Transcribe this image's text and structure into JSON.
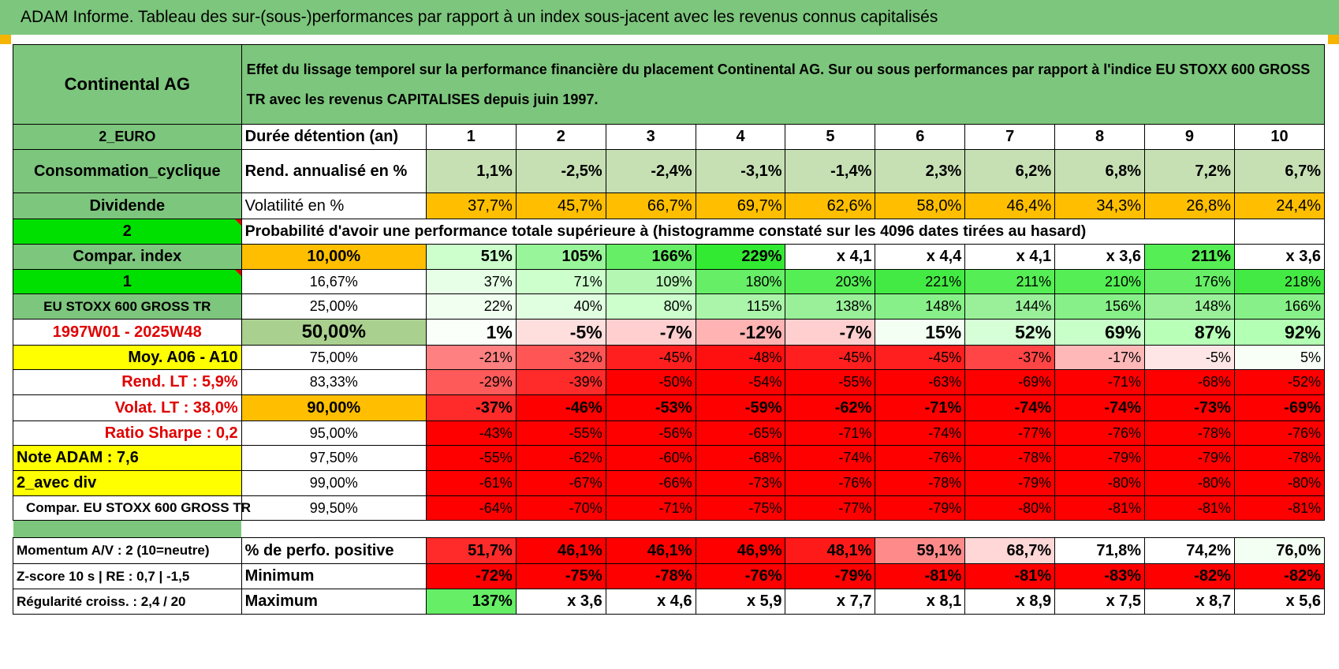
{
  "title": "ADAM Informe. Tableau des sur-(sous-)performances par rapport à un index sous-jacent avec les revenus connus capitalisés",
  "header": {
    "company": "Continental AG",
    "description": "Effet du lissage temporel sur la performance financière du placement Continental AG. Sur ou sous performances par rapport à l'indice EU STOXX 600 GROSS TR avec les revenus CAPITALISES depuis juin 1997."
  },
  "years_row": {
    "left": "2_EURO",
    "label": "Durée détention (an)",
    "years": [
      "1",
      "2",
      "3",
      "4",
      "5",
      "6",
      "7",
      "8",
      "9",
      "10"
    ]
  },
  "rend_row": {
    "left": "Consommation_cyclique",
    "label": "Rend. annualisé en %",
    "values": [
      "1,1%",
      "-2,5%",
      "-2,4%",
      "-3,1%",
      "-1,4%",
      "2,3%",
      "6,2%",
      "6,8%",
      "7,2%",
      "6,7%"
    ]
  },
  "vol_row": {
    "left": "Dividende",
    "label": "Volatilité en %",
    "values": [
      "37,7%",
      "45,7%",
      "66,7%",
      "69,7%",
      "62,6%",
      "58,0%",
      "46,4%",
      "34,3%",
      "26,8%",
      "24,4%"
    ]
  },
  "prob_row": {
    "left": "2",
    "text": "Probabilité d'avoir une performance totale supérieure à (histogramme constaté sur les 4096 dates tirées au hasard)"
  },
  "quantile_rows": [
    {
      "left": "Compar. index",
      "pct": "10,00%",
      "values": [
        "51%",
        "105%",
        "166%",
        "229%",
        "x 4,1",
        "x 4,4",
        "x 4,1",
        "x 3,6",
        "211%",
        "x 3,6"
      ]
    },
    {
      "left": "1",
      "pct": "16,67%",
      "values": [
        "37%",
        "71%",
        "109%",
        "180%",
        "203%",
        "221%",
        "211%",
        "210%",
        "176%",
        "218%"
      ]
    },
    {
      "left": "EU STOXX 600 GROSS TR",
      "pct": "25,00%",
      "values": [
        "22%",
        "40%",
        "80%",
        "115%",
        "138%",
        "148%",
        "144%",
        "156%",
        "148%",
        "166%"
      ]
    },
    {
      "left": "1997W01 - 2025W48",
      "pct": "50,00%",
      "values": [
        "1%",
        "-5%",
        "-7%",
        "-12%",
        "-7%",
        "15%",
        "52%",
        "69%",
        "87%",
        "92%"
      ]
    },
    {
      "left": "Moy. A06 - A10",
      "pct": "75,00%",
      "values": [
        "-21%",
        "-32%",
        "-45%",
        "-48%",
        "-45%",
        "-45%",
        "-37%",
        "-17%",
        "-5%",
        "5%"
      ]
    },
    {
      "left": "Rend. LT :    5,9%",
      "pct": "83,33%",
      "values": [
        "-29%",
        "-39%",
        "-50%",
        "-54%",
        "-55%",
        "-63%",
        "-69%",
        "-71%",
        "-68%",
        "-52%"
      ]
    },
    {
      "left": "Volat. LT :    38,0%",
      "pct": "90,00%",
      "values": [
        "-37%",
        "-46%",
        "-53%",
        "-59%",
        "-62%",
        "-71%",
        "-74%",
        "-74%",
        "-73%",
        "-69%"
      ]
    },
    {
      "left": "Ratio Sharpe :    0,2",
      "pct": "95,00%",
      "values": [
        "-43%",
        "-55%",
        "-56%",
        "-65%",
        "-71%",
        "-74%",
        "-77%",
        "-76%",
        "-78%",
        "-76%"
      ]
    },
    {
      "left": "Note ADAM : 7,6",
      "pct": "97,50%",
      "values": [
        "-55%",
        "-62%",
        "-60%",
        "-68%",
        "-74%",
        "-76%",
        "-78%",
        "-79%",
        "-79%",
        "-78%"
      ]
    },
    {
      "left": "2_avec div",
      "pct": "99,00%",
      "values": [
        "-61%",
        "-67%",
        "-66%",
        "-73%",
        "-76%",
        "-78%",
        "-79%",
        "-80%",
        "-80%",
        "-80%"
      ]
    },
    {
      "left": "Compar. EU STOXX 600 GROSS TR",
      "pct": "99,50%",
      "values": [
        "-64%",
        "-70%",
        "-71%",
        "-75%",
        "-77%",
        "-79%",
        "-80%",
        "-81%",
        "-81%",
        "-81%"
      ]
    }
  ],
  "stats_rows": [
    {
      "left": "Momentum A/V : 2 (10=neutre)",
      "label": "% de perfo. positive",
      "values": [
        "51,7%",
        "46,1%",
        "46,1%",
        "46,9%",
        "48,1%",
        "59,1%",
        "68,7%",
        "71,8%",
        "74,2%",
        "76,0%"
      ]
    },
    {
      "left": "Z-score 10 s | RE : 0,7 | -1,5",
      "label": "Minimum",
      "values": [
        "-72%",
        "-75%",
        "-78%",
        "-76%",
        "-79%",
        "-81%",
        "-81%",
        "-83%",
        "-82%",
        "-82%"
      ]
    },
    {
      "left": "Régularité croiss. : 2,4 / 20",
      "label": "Maximum",
      "values": [
        "137%",
        "x 3,6",
        "x 4,6",
        "x 5,9",
        "x 7,7",
        "x 8,1",
        "x 8,9",
        "x 7,5",
        "x 8,7",
        "x 5,6"
      ]
    }
  ],
  "colors": {
    "title_bg": "#7dc67d",
    "rend_bg": "#c6e0b4",
    "vol_bg": "#ffbf00",
    "bright_green": "#00e000",
    "red": "#ff0000"
  },
  "cell_colors": {
    "quantiles": [
      [
        "#ccffcc",
        "#99f599",
        "#66ee66",
        "#33ea33",
        "#ffffff",
        "#ffffff",
        "#ffffff",
        "#ffffff",
        "#55ee55",
        "#ffffff"
      ],
      [
        "#e6ffe6",
        "#ccffcc",
        "#b3f7b3",
        "#66ee66",
        "#55ee55",
        "#44ea44",
        "#55ee55",
        "#55ee55",
        "#66ee66",
        "#44ea44"
      ],
      [
        "#f0fff0",
        "#e0ffe0",
        "#ccffcc",
        "#aaf5aa",
        "#99f099",
        "#88f088",
        "#99f099",
        "#88f088",
        "#99f099",
        "#88f088"
      ],
      [
        "#fafffa",
        "#ffdede",
        "#ffcfcf",
        "#ffb3b3",
        "#ffcfcf",
        "#f3fff3",
        "#d7ffd7",
        "#c8ffc8",
        "#b8ffb8",
        "#b3ffb3"
      ],
      [
        "#ff8080",
        "#ff5555",
        "#ff1f1f",
        "#ff1010",
        "#ff1f1f",
        "#ff1f1f",
        "#ff4545",
        "#ffb8b8",
        "#ffe6e6",
        "#f7fff7"
      ],
      [
        "#ff5a5a",
        "#ff2a2a",
        "#ff0000",
        "#ff0000",
        "#ff0000",
        "#ff0000",
        "#ff0000",
        "#ff0000",
        "#ff0000",
        "#ff0000"
      ],
      [
        "#ff2a2a",
        "#ff0000",
        "#ff0000",
        "#ff0000",
        "#ff0000",
        "#ff0000",
        "#ff0000",
        "#ff0000",
        "#ff0000",
        "#ff0000"
      ],
      [
        "#ff0000",
        "#ff0000",
        "#ff0000",
        "#ff0000",
        "#ff0000",
        "#ff0000",
        "#ff0000",
        "#ff0000",
        "#ff0000",
        "#ff0000"
      ],
      [
        "#ff0000",
        "#ff0000",
        "#ff0000",
        "#ff0000",
        "#ff0000",
        "#ff0000",
        "#ff0000",
        "#ff0000",
        "#ff0000",
        "#ff0000"
      ],
      [
        "#ff0000",
        "#ff0000",
        "#ff0000",
        "#ff0000",
        "#ff0000",
        "#ff0000",
        "#ff0000",
        "#ff0000",
        "#ff0000",
        "#ff0000"
      ],
      [
        "#ff0000",
        "#ff0000",
        "#ff0000",
        "#ff0000",
        "#ff0000",
        "#ff0000",
        "#ff0000",
        "#ff0000",
        "#ff0000",
        "#ff0000"
      ]
    ],
    "stats": [
      [
        "#ff2a2a",
        "#ff0000",
        "#ff0000",
        "#ff0000",
        "#ff1a1a",
        "#ff8a8a",
        "#ffd7d7",
        "#ffffff",
        "#ffffff",
        "#f2fff2"
      ],
      [
        "#ff0000",
        "#ff0000",
        "#ff0000",
        "#ff0000",
        "#ff0000",
        "#ff0000",
        "#ff0000",
        "#ff0000",
        "#ff0000",
        "#ff0000"
      ],
      [
        "#66ee66",
        "#ffffff",
        "#ffffff",
        "#ffffff",
        "#ffffff",
        "#ffffff",
        "#ffffff",
        "#ffffff",
        "#ffffff",
        "#ffffff"
      ]
    ]
  }
}
